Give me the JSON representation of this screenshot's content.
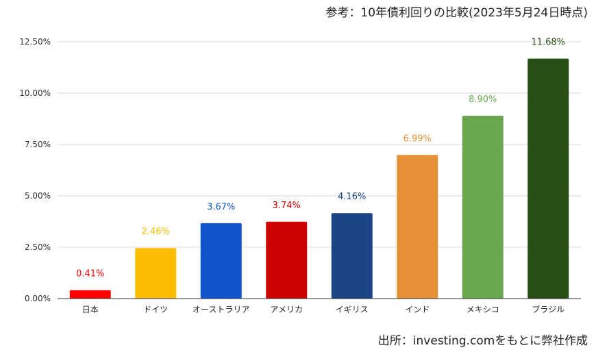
{
  "header_note": "参考：10年債利回りの比較(2023年5月24日時点)",
  "source_note": "出所：investing.comをもとに弊社作成",
  "chart_data": {
    "type": "bar",
    "title": "",
    "xlabel": "",
    "ylabel": "",
    "ylim": [
      0,
      12.5
    ],
    "yticks": [
      "0.00%",
      "2.50%",
      "5.00%",
      "7.50%",
      "10.00%",
      "12.50%"
    ],
    "ytick_values": [
      0,
      2.5,
      5,
      7.5,
      10,
      12.5
    ],
    "grid": true,
    "categories": [
      "日本",
      "ドイツ",
      "オーストラリア",
      "アメリカ",
      "イギリス",
      "インド",
      "メキシコ",
      "ブラジル"
    ],
    "values": [
      0.41,
      2.46,
      3.67,
      3.74,
      4.16,
      6.99,
      8.9,
      11.68
    ],
    "value_labels": [
      "0.41%",
      "2.46%",
      "3.67%",
      "3.74%",
      "4.16%",
      "6.99%",
      "8.90%",
      "11.68%"
    ],
    "colors": [
      "#ff0000",
      "#fbbc04",
      "#1155cc",
      "#cc0000",
      "#1c4587",
      "#e69138",
      "#6aa84f",
      "#274e13"
    ],
    "label_colors": [
      "#ff0000",
      "#fbbc04",
      "#1155cc",
      "#cc0000",
      "#1c4587",
      "#e69138",
      "#6aa84f",
      "#274e13"
    ]
  }
}
